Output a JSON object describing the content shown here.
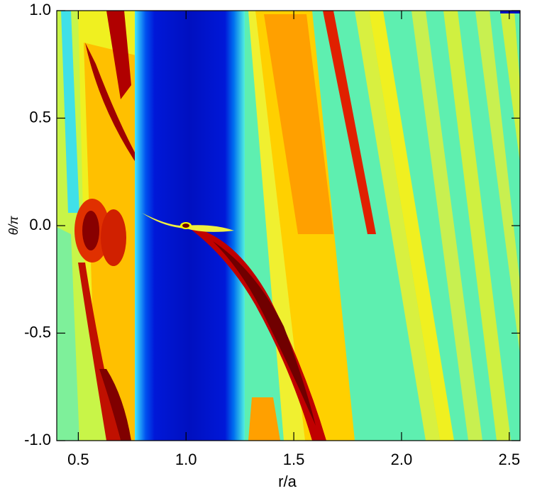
{
  "chart_data": {
    "type": "heatmap",
    "xlabel": "r/a",
    "ylabel": "θ/π",
    "xlim": [
      0.4,
      2.55
    ],
    "ylim": [
      -1,
      1
    ],
    "xticks": [
      0.5,
      {
        "value": 1,
        "label": "1.0"
      },
      1.5,
      {
        "value": 2,
        "label": "2.0"
      },
      2.5
    ],
    "yticks": [
      {
        "value": -1,
        "label": "-1.0"
      },
      -0.5,
      {
        "value": 0,
        "label": "0.0"
      },
      0.5,
      {
        "value": 1,
        "label": "1.0"
      }
    ]
  }
}
